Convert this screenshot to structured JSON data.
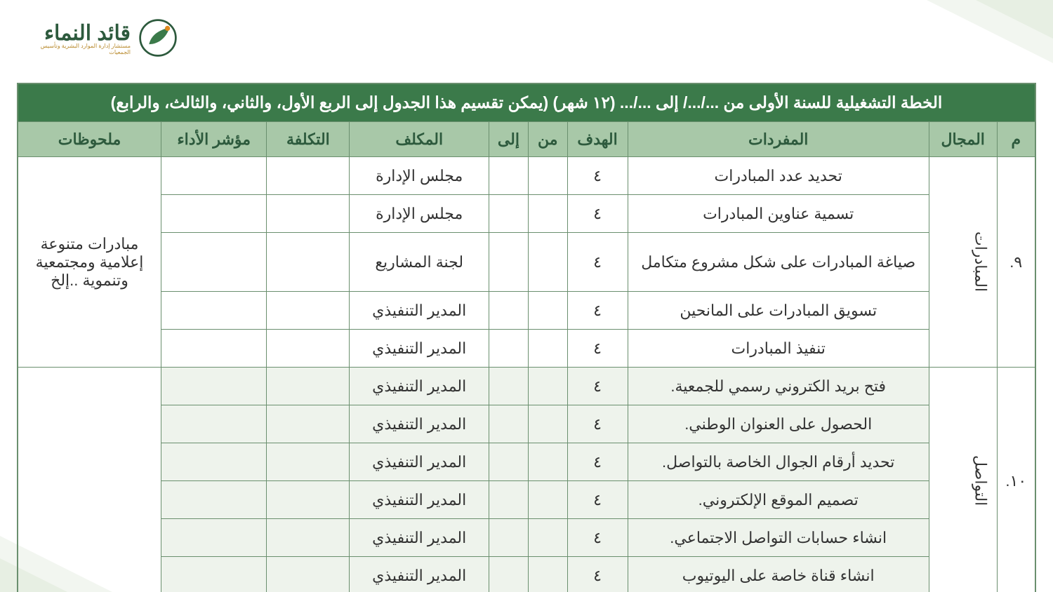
{
  "colors": {
    "header_bg": "#3b7a4a",
    "header_text": "#ffffff",
    "subhead_bg": "#a8c8a8",
    "subhead_text": "#2d5a3d",
    "border": "#6a8f6e",
    "alt_row": "#eef3ec",
    "text": "#333333",
    "logo_green": "#2d5a3d",
    "logo_gold": "#b98b2f",
    "corner_light": "#f2f6f0",
    "corner_mid": "#e7efe3"
  },
  "logo": {
    "main": "قائد النماء",
    "sub": "مستشار إدارة الموارد البشرية وتأسيس الجمعيات"
  },
  "title": "الخطة التشغيلية للسنة الأولى من .../.../ إلى .../... (١٢ شهر) (يمكن تقسيم هذا الجدول إلى الربع الأول، والثاني، والثالث، والرابع)",
  "columns": {
    "num": "م",
    "domain": "المجال",
    "item": "المفردات",
    "goal": "الهدف",
    "from": "من",
    "to": "إلى",
    "responsible": "المكلف",
    "cost": "التكلفة",
    "kpi": "مؤشر الأداء",
    "notes": "ملحوظات"
  },
  "groups": [
    {
      "num": "٩.",
      "domain": "المبادرات",
      "notes": "مبادرات متنوعة إعلامية ومجتمعية وتنموية ..إلخ",
      "rows": [
        {
          "item": "تحديد عدد المبادرات",
          "goal": "٤",
          "from": "",
          "to": "",
          "responsible": "مجلس الإدارة",
          "cost": "",
          "kpi": "",
          "alt": false,
          "tall": false
        },
        {
          "item": "تسمية عناوين المبادرات",
          "goal": "٤",
          "from": "",
          "to": "",
          "responsible": "مجلس الإدارة",
          "cost": "",
          "kpi": "",
          "alt": false,
          "tall": false
        },
        {
          "item": "صياغة المبادرات على شكل مشروع متكامل",
          "goal": "٤",
          "from": "",
          "to": "",
          "responsible": "لجنة المشاريع",
          "cost": "",
          "kpi": "",
          "alt": false,
          "tall": true
        },
        {
          "item": "تسويق المبادرات على المانحين",
          "goal": "٤",
          "from": "",
          "to": "",
          "responsible": "المدير التنفيذي",
          "cost": "",
          "kpi": "",
          "alt": false,
          "tall": false
        },
        {
          "item": "تنفيذ المبادرات",
          "goal": "٤",
          "from": "",
          "to": "",
          "responsible": "المدير التنفيذي",
          "cost": "",
          "kpi": "",
          "alt": false,
          "tall": false
        }
      ]
    },
    {
      "num": "١٠.",
      "domain": "التواصل",
      "notes": "",
      "rows": [
        {
          "item": "فتح بريد الكتروني رسمي للجمعية.",
          "goal": "٤",
          "from": "",
          "to": "",
          "responsible": "المدير التنفيذي",
          "cost": "",
          "kpi": "",
          "alt": true,
          "tall": false
        },
        {
          "item": "الحصول على العنوان الوطني.",
          "goal": "٤",
          "from": "",
          "to": "",
          "responsible": "المدير التنفيذي",
          "cost": "",
          "kpi": "",
          "alt": true,
          "tall": false
        },
        {
          "item": "تحديد أرقام الجوال الخاصة بالتواصل.",
          "goal": "٤",
          "from": "",
          "to": "",
          "responsible": "المدير التنفيذي",
          "cost": "",
          "kpi": "",
          "alt": true,
          "tall": false
        },
        {
          "item": "تصميم الموقع الإلكتروني.",
          "goal": "٤",
          "from": "",
          "to": "",
          "responsible": "المدير التنفيذي",
          "cost": "",
          "kpi": "",
          "alt": true,
          "tall": false
        },
        {
          "item": "انشاء حسابات التواصل الاجتماعي.",
          "goal": "٤",
          "from": "",
          "to": "",
          "responsible": "المدير التنفيذي",
          "cost": "",
          "kpi": "",
          "alt": true,
          "tall": false
        },
        {
          "item": "انشاء قناة خاصة على اليوتيوب",
          "goal": "٤",
          "from": "",
          "to": "",
          "responsible": "المدير التنفيذي",
          "cost": "",
          "kpi": "",
          "alt": true,
          "tall": false
        }
      ]
    }
  ]
}
